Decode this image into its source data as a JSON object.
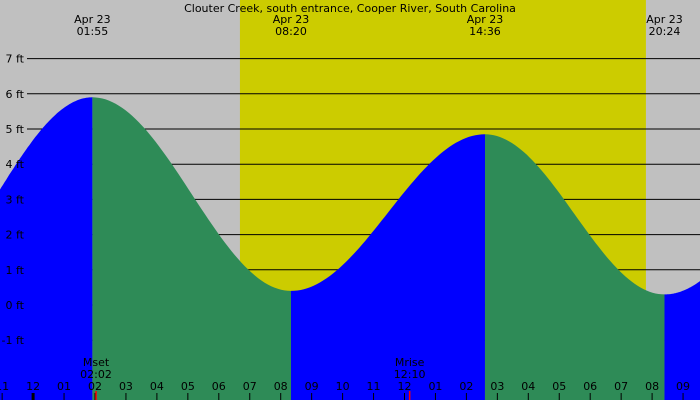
{
  "chart_data": {
    "type": "area",
    "title": "Clouter Creek, south entrance, Cooper River, South Carolina",
    "ylabel": "",
    "xlabel": "",
    "ylim": [
      -1.5,
      7.4
    ],
    "y_ticks": [
      "-1 ft",
      "0 ft",
      "1 ft",
      "2 ft",
      "3 ft",
      "4 ft",
      "5 ft",
      "6 ft",
      "7 ft"
    ],
    "y_tick_values": [
      -1,
      0,
      1,
      2,
      3,
      4,
      5,
      6,
      7
    ],
    "grid": true,
    "x_hour_labels": [
      "11",
      "12",
      "01",
      "02",
      "03",
      "04",
      "05",
      "06",
      "07",
      "08",
      "09",
      "10",
      "11",
      "12",
      "01",
      "02",
      "03",
      "04",
      "05",
      "06",
      "07",
      "08",
      "09"
    ],
    "extremes": [
      {
        "type": "high",
        "date": "Apr 23",
        "time": "01:55",
        "height_ft": 5.9
      },
      {
        "type": "low",
        "date": "Apr 23",
        "time": "08:20",
        "height_ft": 0.4
      },
      {
        "type": "high",
        "date": "Apr 23",
        "time": "14:36",
        "height_ft": 4.85
      },
      {
        "type": "low",
        "date": "Apr 23",
        "time": "20:24",
        "height_ft": 0.3
      }
    ],
    "daylight": {
      "start": "06:41",
      "end": "19:48"
    },
    "moon_events": [
      {
        "label": "Mset",
        "time": "02:02"
      },
      {
        "label": "Mrise",
        "time": "12:10"
      }
    ],
    "colors": {
      "night": "#c0c0c0",
      "day": "#cccc00",
      "rising": "#0000ff",
      "falling": "#2e8b57",
      "moon_tick": "#ff0000"
    }
  }
}
